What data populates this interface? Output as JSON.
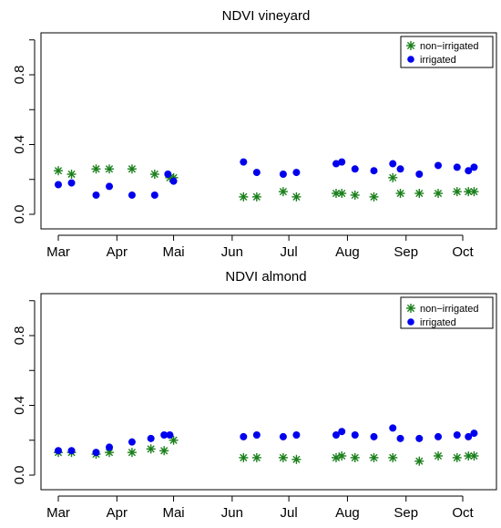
{
  "chart_data": [
    {
      "type": "scatter",
      "title": "NDVI vineyard",
      "xlabel": "",
      "ylabel": "",
      "x_ticks": [
        {
          "label": "Mar",
          "doy": 60
        },
        {
          "label": "Apr",
          "doy": 91
        },
        {
          "label": "Mai",
          "doy": 121
        },
        {
          "label": "Jun",
          "doy": 152
        },
        {
          "label": "Jul",
          "doy": 182
        },
        {
          "label": "Aug",
          "doy": 213
        },
        {
          "label": "Sep",
          "doy": 244
        },
        {
          "label": "Oct",
          "doy": 274
        }
      ],
      "y_ticks": [
        0.0,
        0.4,
        0.8
      ],
      "ylim": [
        0.0,
        1.0
      ],
      "grid": false,
      "legend": {
        "position": "top-right",
        "entries": [
          {
            "label": "non−irrigated",
            "symbol": "asterisk",
            "color": "#1a7f1a"
          },
          {
            "label": "irrigated",
            "symbol": "dot",
            "color": "#0000ee"
          }
        ]
      },
      "series": [
        {
          "name": "non−irrigated",
          "color": "#1a7f1a",
          "marker": "asterisk",
          "points": [
            [
              60,
              0.25
            ],
            [
              67,
              0.23
            ],
            [
              80,
              0.26
            ],
            [
              87,
              0.26
            ],
            [
              99,
              0.26
            ],
            [
              111,
              0.23
            ],
            [
              119,
              0.21
            ],
            [
              121,
              0.21
            ],
            [
              158,
              0.1
            ],
            [
              165,
              0.1
            ],
            [
              179,
              0.13
            ],
            [
              186,
              0.1
            ],
            [
              207,
              0.12
            ],
            [
              210,
              0.12
            ],
            [
              217,
              0.11
            ],
            [
              227,
              0.1
            ],
            [
              237,
              0.21
            ],
            [
              241,
              0.12
            ],
            [
              251,
              0.12
            ],
            [
              261,
              0.12
            ],
            [
              271,
              0.13
            ],
            [
              277,
              0.13
            ],
            [
              280,
              0.13
            ]
          ]
        },
        {
          "name": "irrigated",
          "color": "#0000ee",
          "marker": "dot",
          "points": [
            [
              60,
              0.17
            ],
            [
              67,
              0.18
            ],
            [
              80,
              0.11
            ],
            [
              87,
              0.16
            ],
            [
              99,
              0.11
            ],
            [
              111,
              0.11
            ],
            [
              118,
              0.23
            ],
            [
              121,
              0.19
            ],
            [
              158,
              0.3
            ],
            [
              165,
              0.24
            ],
            [
              179,
              0.23
            ],
            [
              186,
              0.24
            ],
            [
              207,
              0.29
            ],
            [
              210,
              0.3
            ],
            [
              217,
              0.26
            ],
            [
              227,
              0.25
            ],
            [
              237,
              0.29
            ],
            [
              241,
              0.26
            ],
            [
              251,
              0.23
            ],
            [
              261,
              0.28
            ],
            [
              271,
              0.27
            ],
            [
              277,
              0.25
            ],
            [
              280,
              0.27
            ]
          ]
        }
      ]
    },
    {
      "type": "scatter",
      "title": "NDVI almond",
      "xlabel": "",
      "ylabel": "",
      "x_ticks": [
        {
          "label": "Mar",
          "doy": 60
        },
        {
          "label": "Apr",
          "doy": 91
        },
        {
          "label": "Mai",
          "doy": 121
        },
        {
          "label": "Jun",
          "doy": 152
        },
        {
          "label": "Jul",
          "doy": 182
        },
        {
          "label": "Aug",
          "doy": 213
        },
        {
          "label": "Sep",
          "doy": 244
        },
        {
          "label": "Oct",
          "doy": 274
        }
      ],
      "y_ticks": [
        0.0,
        0.4,
        0.8
      ],
      "ylim": [
        0.0,
        1.0
      ],
      "grid": false,
      "legend": {
        "position": "top-right",
        "entries": [
          {
            "label": "non−irrigated",
            "symbol": "asterisk",
            "color": "#1a7f1a"
          },
          {
            "label": "irrigated",
            "symbol": "dot",
            "color": "#0000ee"
          }
        ]
      },
      "series": [
        {
          "name": "non−irrigated",
          "color": "#1a7f1a",
          "marker": "asterisk",
          "points": [
            [
              60,
              0.13
            ],
            [
              67,
              0.13
            ],
            [
              80,
              0.12
            ],
            [
              87,
              0.13
            ],
            [
              99,
              0.13
            ],
            [
              109,
              0.15
            ],
            [
              116,
              0.14
            ],
            [
              121,
              0.2
            ],
            [
              158,
              0.1
            ],
            [
              165,
              0.1
            ],
            [
              179,
              0.1
            ],
            [
              186,
              0.09
            ],
            [
              207,
              0.1
            ],
            [
              210,
              0.11
            ],
            [
              217,
              0.1
            ],
            [
              227,
              0.1
            ],
            [
              237,
              0.1
            ],
            [
              251,
              0.08
            ],
            [
              261,
              0.11
            ],
            [
              271,
              0.1
            ],
            [
              277,
              0.11
            ],
            [
              280,
              0.11
            ]
          ]
        },
        {
          "name": "irrigated",
          "color": "#0000ee",
          "marker": "dot",
          "points": [
            [
              60,
              0.14
            ],
            [
              67,
              0.14
            ],
            [
              80,
              0.13
            ],
            [
              87,
              0.16
            ],
            [
              99,
              0.19
            ],
            [
              109,
              0.21
            ],
            [
              116,
              0.23
            ],
            [
              119,
              0.23
            ],
            [
              158,
              0.22
            ],
            [
              165,
              0.23
            ],
            [
              179,
              0.22
            ],
            [
              186,
              0.23
            ],
            [
              207,
              0.23
            ],
            [
              210,
              0.25
            ],
            [
              217,
              0.23
            ],
            [
              227,
              0.22
            ],
            [
              237,
              0.27
            ],
            [
              241,
              0.21
            ],
            [
              251,
              0.21
            ],
            [
              261,
              0.22
            ],
            [
              271,
              0.23
            ],
            [
              277,
              0.22
            ],
            [
              280,
              0.24
            ]
          ]
        }
      ]
    }
  ]
}
